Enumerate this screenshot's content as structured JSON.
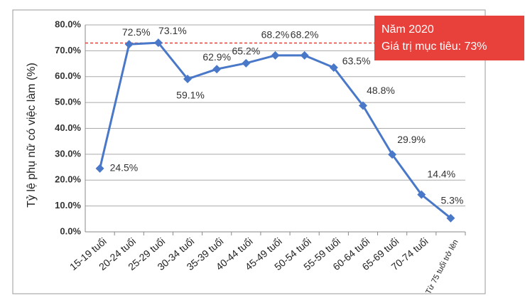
{
  "chart_data": {
    "type": "line",
    "y_label": "Tỷ lệ phụ nữ có việc làm (%)",
    "categories": [
      "15-19 tuổi",
      "20-24 tuổi",
      "25-29 tuổi",
      "30-34 tuổi",
      "35-39 tuổi",
      "40-44 tuổi",
      "45-49 tuổi",
      "50-54 tuổi",
      "55-59 tuổi",
      "60-64 tuổi",
      "65-69 tuổi",
      "70-74 tuổi",
      "Từ 75 tuổi trở lên"
    ],
    "series": [
      {
        "color": "#4a78c8",
        "values": [
          24.5,
          72.5,
          73.1,
          59.1,
          62.9,
          65.2,
          68.2,
          68.2,
          63.5,
          48.8,
          29.9,
          14.4,
          5.3
        ],
        "value_labels": [
          "24.5%",
          "72.5%",
          "73.1%",
          "59.1%",
          "62.9%",
          "65.2%",
          "68.2%",
          "68.2%",
          "63.5%",
          "48.8%",
          "29.9%",
          "14.4%",
          "5.3%"
        ]
      }
    ],
    "ylim": [
      0,
      80
    ],
    "yticks": [
      {
        "value": 0,
        "label": "0.0%"
      },
      {
        "value": 10,
        "label": "10.0%"
      },
      {
        "value": 20,
        "label": "20.0%"
      },
      {
        "value": 30,
        "label": "30.0%"
      },
      {
        "value": 40,
        "label": "40.0%"
      },
      {
        "value": 50,
        "label": "50.0%"
      },
      {
        "value": 60,
        "label": "60.0%"
      },
      {
        "value": 70,
        "label": "70.0%"
      },
      {
        "value": 80,
        "label": "80.0%"
      }
    ],
    "grid": true,
    "target": {
      "value": 73,
      "color": "#e8403a",
      "title": "Năm 2020",
      "text": "Giá trị mục tiêu: 73%"
    }
  }
}
